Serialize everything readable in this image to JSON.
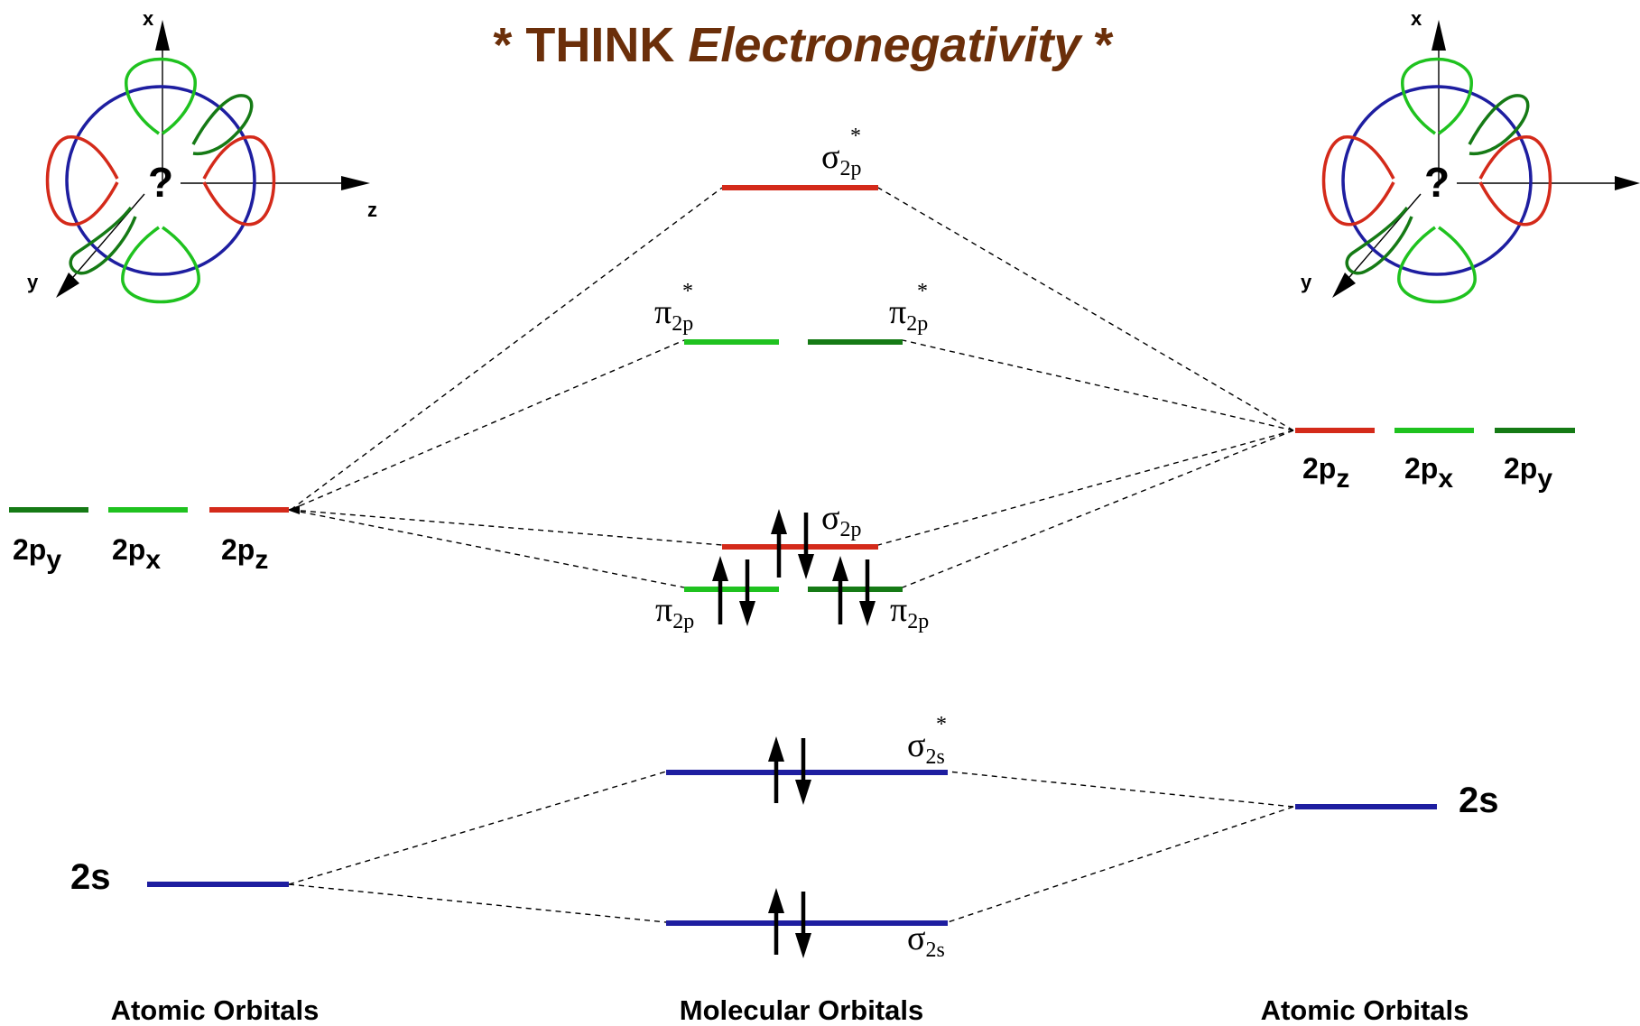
{
  "title": {
    "prefix": "* THINK ",
    "emphasis": "Electronegativity",
    "suffix": " *",
    "color": "#6b2f0a"
  },
  "colors": {
    "red": "#d42a1a",
    "light_green": "#1fc21f",
    "dark_green": "#157a15",
    "blue": "#1e1ea0",
    "black": "#000000"
  },
  "axes": {
    "x": "x",
    "y": "y",
    "z": "z",
    "question_mark": "?"
  },
  "left_atom": {
    "p_labels": {
      "py": [
        "2p",
        "y"
      ],
      "px": [
        "2p",
        "x"
      ],
      "pz": [
        "2p",
        "z"
      ]
    },
    "s_label": "2s",
    "footer": "Atomic Orbitals"
  },
  "right_atom": {
    "p_labels": {
      "pz": [
        "2p",
        "z"
      ],
      "px": [
        "2p",
        "x"
      ],
      "py": [
        "2p",
        "y"
      ]
    },
    "s_label": "2s",
    "footer": "Atomic Orbitals"
  },
  "molecular": {
    "footer": "Molecular Orbitals",
    "sigma2p_star": [
      "σ",
      "2p",
      "*"
    ],
    "pi2p_star_left": [
      "π",
      "2p",
      "*"
    ],
    "pi2p_star_right": [
      "π",
      "2p",
      "*"
    ],
    "sigma2p": [
      "σ",
      "2p"
    ],
    "pi2p_left": [
      "π",
      "2p"
    ],
    "pi2p_right": [
      "π",
      "2p"
    ],
    "sigma2s_star": [
      "σ",
      "2s",
      "*"
    ],
    "sigma2s": [
      "σ",
      "2s"
    ]
  }
}
